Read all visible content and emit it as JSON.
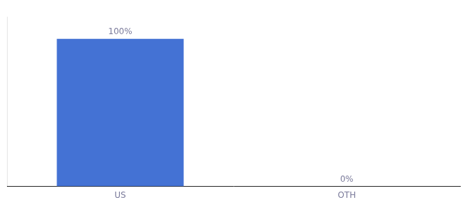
{
  "chart_data": {
    "type": "bar",
    "categories": [
      "US",
      "OTH"
    ],
    "values": [
      100,
      0
    ],
    "value_labels": [
      "100%",
      "0%"
    ],
    "data_labels": true,
    "color": "#4472d4",
    "ylim": [
      0,
      115
    ],
    "tick_labels": "x",
    "grid": false
  }
}
